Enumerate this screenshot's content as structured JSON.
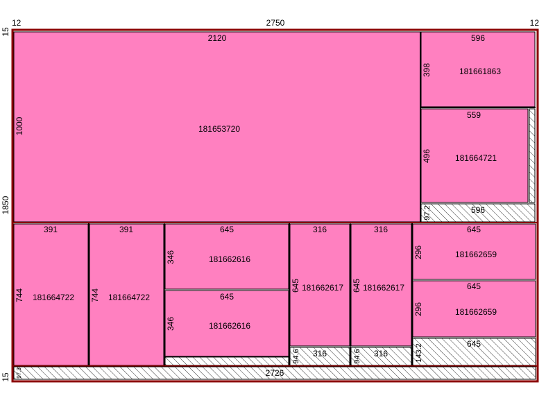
{
  "colors": {
    "part_fill": "#ff80c0",
    "waste_fill": "#ffffff",
    "hatch": "#000000",
    "sheet_border": "#8b0000",
    "part_border": "#000000"
  },
  "sheet": {
    "width_label": "2750",
    "height_label": "1850",
    "trim_left": "12",
    "trim_right": "12",
    "trim_top": "15",
    "trim_bottom": "15"
  },
  "pieces": {
    "p1": {
      "id": "181653720",
      "w": "2120",
      "h": "1000"
    },
    "p2": {
      "id": "181661863",
      "w": "596",
      "h": "398"
    },
    "p3": {
      "id": "181664721",
      "w": "559",
      "h": "496"
    },
    "w1": {
      "w": "596",
      "h": "97.2"
    },
    "p4": {
      "id": "181664722",
      "w": "391",
      "h": "744"
    },
    "p5": {
      "id": "181664722",
      "w": "391",
      "h": "744"
    },
    "p6": {
      "id": "181662616",
      "w": "645",
      "h": "346"
    },
    "p7": {
      "id": "181662616",
      "w": "645",
      "h": "346"
    },
    "p8": {
      "id": "181662617",
      "w": "316",
      "h": "645"
    },
    "w2": {
      "w": "316",
      "h": "94.6"
    },
    "p9": {
      "id": "181662617",
      "w": "316",
      "h": "645"
    },
    "w3": {
      "w": "316",
      "h": "94.6"
    },
    "p10": {
      "id": "181662659",
      "w": "645",
      "h": "296"
    },
    "p11": {
      "id": "181662659",
      "w": "645",
      "h": "296"
    },
    "w4": {
      "w": "645",
      "h": "143.2"
    },
    "w5": {
      "w": "2726",
      "h": "97.3"
    }
  }
}
